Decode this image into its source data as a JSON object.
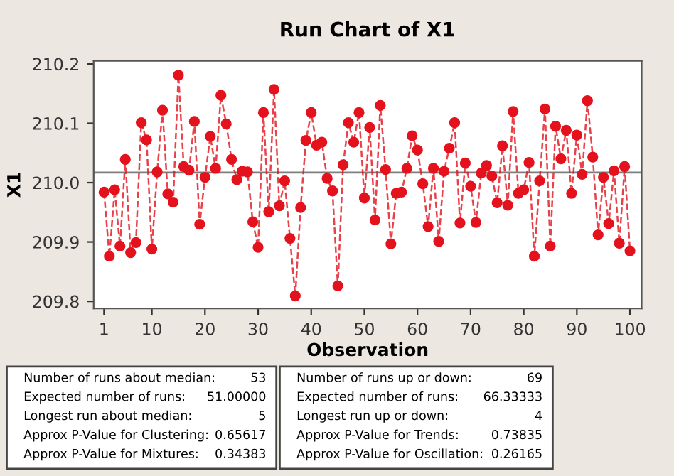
{
  "chart_data": {
    "type": "line",
    "title": "Run Chart of X1",
    "xlabel": "Observation",
    "ylabel": "X1",
    "x": [
      1,
      2,
      3,
      4,
      5,
      6,
      7,
      8,
      9,
      10,
      11,
      12,
      13,
      14,
      15,
      16,
      17,
      18,
      19,
      20,
      21,
      22,
      23,
      24,
      25,
      26,
      27,
      28,
      29,
      30,
      31,
      32,
      33,
      34,
      35,
      36,
      37,
      38,
      39,
      40,
      41,
      42,
      43,
      44,
      45,
      46,
      47,
      48,
      49,
      50,
      51,
      52,
      53,
      54,
      55,
      56,
      57,
      58,
      59,
      60,
      61,
      62,
      63,
      64,
      65,
      66,
      67,
      68,
      69,
      70,
      71,
      72,
      73,
      74,
      75,
      76,
      77,
      78,
      79,
      80,
      81,
      82,
      83,
      84,
      85,
      86,
      87,
      88,
      89,
      90,
      91,
      92,
      93,
      94,
      95,
      96,
      97,
      98,
      99,
      100
    ],
    "series": [
      {
        "color": "#e3121d",
        "values": [
          209.984,
          209.876,
          209.988,
          209.893,
          210.039,
          209.882,
          209.899,
          210.101,
          210.072,
          209.888,
          210.018,
          210.122,
          209.981,
          209.967,
          210.181,
          210.027,
          210.021,
          210.103,
          209.93,
          210.009,
          210.078,
          210.024,
          210.147,
          210.099,
          210.039,
          210.005,
          210.019,
          210.018,
          209.934,
          209.891,
          210.118,
          209.951,
          210.157,
          209.961,
          210.003,
          209.906,
          209.809,
          209.958,
          210.071,
          210.118,
          210.063,
          210.068,
          210.007,
          209.986,
          209.826,
          210.03,
          210.101,
          210.068,
          210.118,
          209.974,
          210.093,
          209.937,
          210.13,
          210.022,
          209.897,
          209.982,
          209.984,
          210.024,
          210.079,
          210.055,
          209.998,
          209.926,
          210.024,
          209.901,
          210.019,
          210.058,
          210.101,
          209.932,
          210.033,
          209.994,
          209.933,
          210.016,
          210.029,
          210.011,
          209.966,
          210.062,
          209.962,
          210.12,
          209.982,
          209.988,
          210.034,
          209.876,
          210.003,
          210.124,
          209.893,
          210.095,
          210.04,
          210.088,
          209.982,
          210.08,
          210.014,
          210.138,
          210.043,
          209.912,
          210.009,
          209.931,
          210.02,
          209.898,
          210.027,
          209.885
        ]
      }
    ],
    "xlim": [
      -0.95,
      102.2
    ],
    "xticks": [
      1,
      10,
      20,
      30,
      40,
      50,
      60,
      70,
      80,
      90,
      100
    ],
    "ylim": [
      209.788,
      210.205
    ],
    "yticks": [
      209.8,
      209.9,
      {
        "value": 210.0,
        "label": "210.0"
      },
      210.1,
      210.2
    ],
    "ref_lines": [
      {
        "axis": "y",
        "value": 210.017,
        "color": "#7f7f7f"
      }
    ],
    "marker": "circle",
    "line_style": "dashed",
    "grid": false,
    "legend": false,
    "annotations": [
      "Number of runs about median:",
      "53",
      "Expected number of runs:",
      "51.00000",
      "Longest run about median:",
      "5",
      "Approx P-Value for Clustering:",
      "0.65617",
      "Approx P-Value for Mixtures:",
      "0.34383",
      "Number of runs up or down:",
      "69",
      "Expected number of runs:",
      "66.33333",
      "Longest run up or down:",
      "4",
      "Approx P-Value for Trends:",
      "0.73835",
      "Approx P-Value for Oscillation:",
      "0.26165"
    ]
  }
}
